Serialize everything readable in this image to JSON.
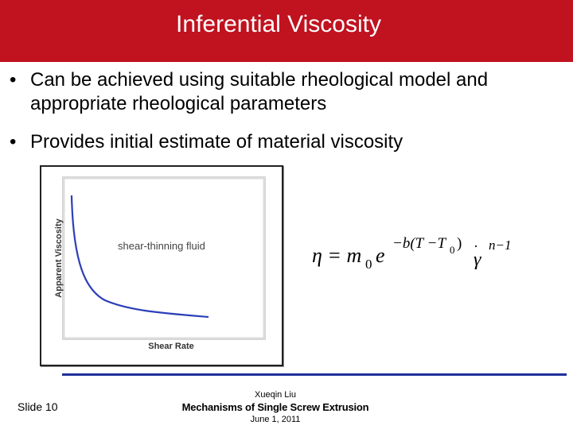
{
  "slide": {
    "title": "Inferential Viscosity",
    "colors": {
      "title_bar": "#c0121f",
      "footer_line": "#1f2f9a",
      "curve": "#2c3fb8"
    }
  },
  "bullets": [
    {
      "marker": "•",
      "text_line1": "Can be achieved using suitable rheological model and",
      "text_line2": "appropriate rheological parameters"
    },
    {
      "marker": "•",
      "text_line1": "Provides initial estimate of material viscosity"
    }
  ],
  "figure": {
    "y_axis_label": "Apparent Viscosity",
    "x_axis_label": "Shear Rate",
    "curve_label": "shear-thinning fluid"
  },
  "equation": {
    "lhs": "η = m",
    "m_subscript": "0",
    "base": "e",
    "exp_prefix": "−b(T −T",
    "exp_subscript": "0",
    "exp_suffix": ")",
    "gamma": "γ",
    "gamma_exp": "n−1"
  },
  "footer": {
    "slide_number": "Slide 10",
    "author": "Xueqin Liu",
    "title": "Mechanisms of Single Screw Extrusion",
    "date": "June 1, 2011"
  }
}
